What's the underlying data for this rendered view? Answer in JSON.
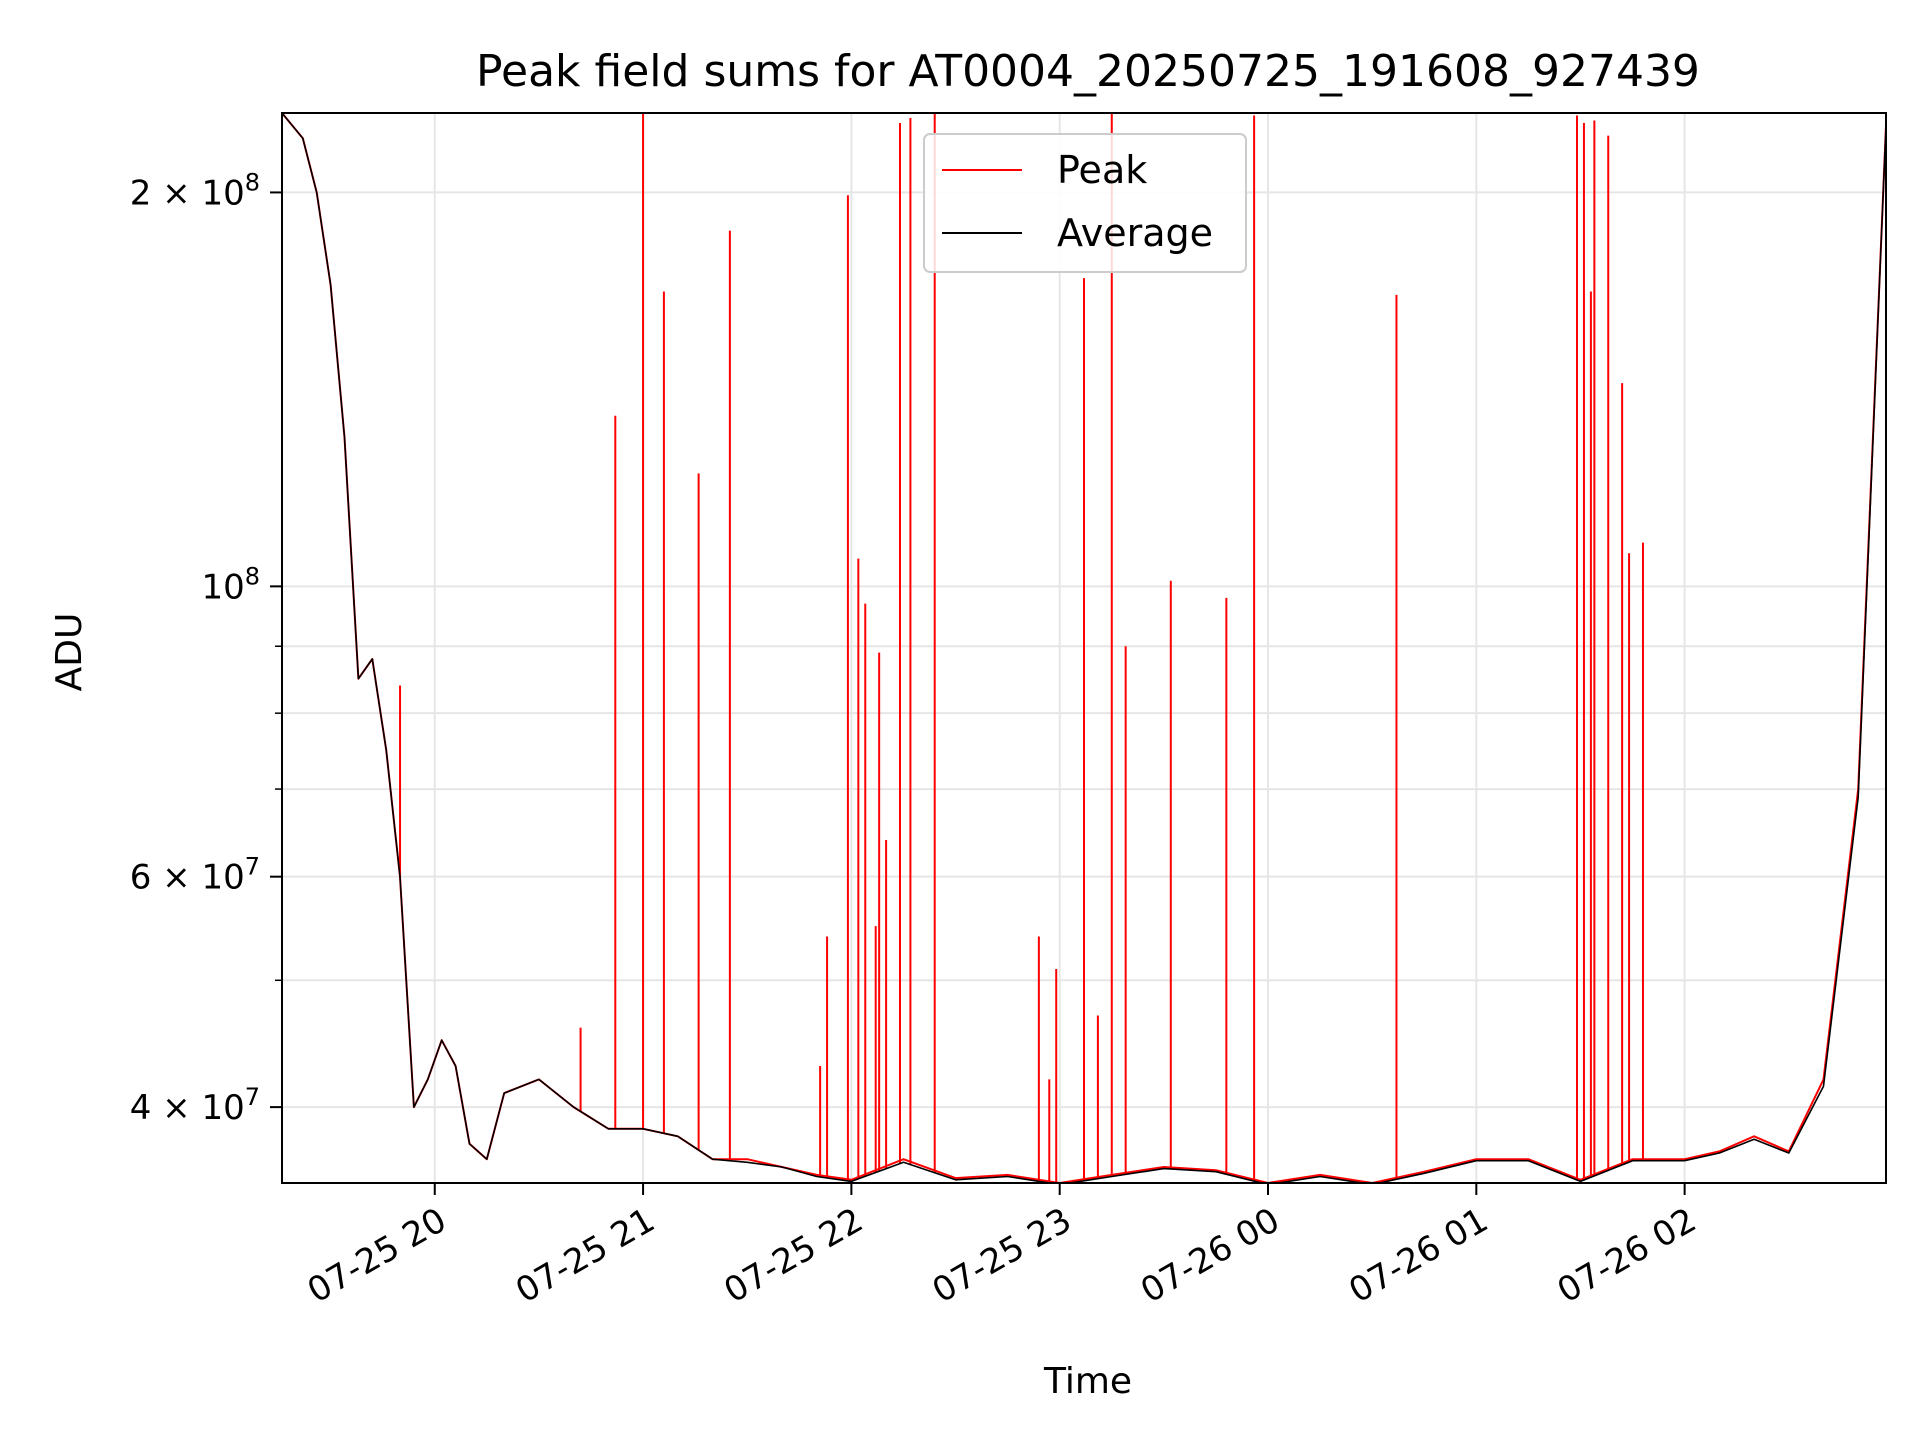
{
  "chart_data": {
    "type": "line",
    "title": "Peak field sums for AT0004_20250725_191608_927439",
    "xlabel": "Time",
    "ylabel": "ADU",
    "y_scale": "log",
    "xlim": [
      "2025-07-25 19:16",
      "2025-07-26 02:58"
    ],
    "ylim": [
      35000000,
      230000000
    ],
    "grid": true,
    "legend_position": "top-center",
    "x_ticks": [
      "07-25 20",
      "07-25 21",
      "07-25 22",
      "07-25 23",
      "07-26 00",
      "07-26 01",
      "07-26 02"
    ],
    "y_ticks": [
      {
        "value": 40000000,
        "mantissa": "4",
        "exponent": "7"
      },
      {
        "value": 60000000,
        "mantissa": "6",
        "exponent": "7"
      },
      {
        "value": 100000000,
        "mantissa": "",
        "exponent": "8"
      },
      {
        "value": 200000000,
        "mantissa": "2",
        "exponent": "8"
      }
    ],
    "colors": {
      "peak": "#ff0000",
      "average": "#000000",
      "grid": "#e6e6e6"
    },
    "series": [
      {
        "name": "Peak",
        "color": "#ff0000",
        "x": [
          "2025-07-25 19:16",
          "2025-07-25 19:22",
          "2025-07-25 19:26",
          "2025-07-25 19:30",
          "2025-07-25 19:34",
          "2025-07-25 19:38",
          "2025-07-25 19:42",
          "2025-07-25 19:46",
          "2025-07-25 19:50",
          "2025-07-25 19:54",
          "2025-07-25 19:58",
          "2025-07-25 20:02",
          "2025-07-25 20:06",
          "2025-07-25 20:10",
          "2025-07-25 20:15",
          "2025-07-25 20:20",
          "2025-07-25 20:30",
          "2025-07-25 20:40",
          "2025-07-25 20:50",
          "2025-07-25 21:00",
          "2025-07-25 21:10",
          "2025-07-25 21:20",
          "2025-07-25 21:30",
          "2025-07-25 21:40",
          "2025-07-25 21:50",
          "2025-07-25 22:00",
          "2025-07-25 22:15",
          "2025-07-25 22:30",
          "2025-07-25 22:45",
          "2025-07-25 23:00",
          "2025-07-25 23:15",
          "2025-07-25 23:30",
          "2025-07-25 23:45",
          "2025-07-26 00:00",
          "2025-07-26 00:15",
          "2025-07-26 00:30",
          "2025-07-26 00:45",
          "2025-07-26 01:00",
          "2025-07-26 01:15",
          "2025-07-26 01:30",
          "2025-07-26 01:45",
          "2025-07-26 02:00",
          "2025-07-26 02:10",
          "2025-07-26 02:20",
          "2025-07-26 02:30",
          "2025-07-26 02:40",
          "2025-07-26 02:50",
          "2025-07-26 02:58"
        ],
        "y": [
          230000000,
          220000000,
          200000000,
          170000000,
          130000000,
          85000000,
          88000000,
          75000000,
          60000000,
          40000000,
          42000000,
          45000000,
          43000000,
          37500000,
          36500000,
          41000000,
          42000000,
          40000000,
          38500000,
          38500000,
          38000000,
          36500000,
          36500000,
          36000000,
          35500000,
          35200000,
          36500000,
          35300000,
          35500000,
          35000000,
          35500000,
          36000000,
          35800000,
          35000000,
          35500000,
          35000000,
          35700000,
          36500000,
          36500000,
          35200000,
          36500000,
          36500000,
          37000000,
          38000000,
          37000000,
          42000000,
          70000000,
          225000000
        ],
        "spikes": [
          {
            "x": "2025-07-25 19:50",
            "y": 84000000
          },
          {
            "x": "2025-07-25 20:42",
            "y": 46000000
          },
          {
            "x": "2025-07-25 20:52",
            "y": 135000000
          },
          {
            "x": "2025-07-25 21:00",
            "y": 230000000
          },
          {
            "x": "2025-07-25 21:06",
            "y": 168000000
          },
          {
            "x": "2025-07-25 21:16",
            "y": 122000000
          },
          {
            "x": "2025-07-25 21:25",
            "y": 187000000
          },
          {
            "x": "2025-07-25 21:51",
            "y": 43000000
          },
          {
            "x": "2025-07-25 21:53",
            "y": 54000000
          },
          {
            "x": "2025-07-25 21:59",
            "y": 199000000
          },
          {
            "x": "2025-07-25 22:02",
            "y": 105000000
          },
          {
            "x": "2025-07-25 22:04",
            "y": 97000000
          },
          {
            "x": "2025-07-25 22:07",
            "y": 55000000
          },
          {
            "x": "2025-07-25 22:08",
            "y": 89000000
          },
          {
            "x": "2025-07-25 22:10",
            "y": 64000000
          },
          {
            "x": "2025-07-25 22:14",
            "y": 226000000
          },
          {
            "x": "2025-07-25 22:17",
            "y": 228000000
          },
          {
            "x": "2025-07-25 22:24",
            "y": 230000000
          },
          {
            "x": "2025-07-25 22:54",
            "y": 54000000
          },
          {
            "x": "2025-07-25 22:57",
            "y": 42000000
          },
          {
            "x": "2025-07-25 22:59",
            "y": 51000000
          },
          {
            "x": "2025-07-25 23:07",
            "y": 172000000
          },
          {
            "x": "2025-07-25 23:11",
            "y": 47000000
          },
          {
            "x": "2025-07-25 23:15",
            "y": 230000000
          },
          {
            "x": "2025-07-25 23:19",
            "y": 90000000
          },
          {
            "x": "2025-07-25 23:32",
            "y": 101000000
          },
          {
            "x": "2025-07-25 23:48",
            "y": 98000000
          },
          {
            "x": "2025-07-25 23:56",
            "y": 229000000
          },
          {
            "x": "2025-07-26 00:37",
            "y": 167000000
          },
          {
            "x": "2025-07-26 01:29",
            "y": 229000000
          },
          {
            "x": "2025-07-26 01:31",
            "y": 226000000
          },
          {
            "x": "2025-07-26 01:33",
            "y": 168000000
          },
          {
            "x": "2025-07-26 01:34",
            "y": 227000000
          },
          {
            "x": "2025-07-26 01:38",
            "y": 221000000
          },
          {
            "x": "2025-07-26 01:42",
            "y": 143000000
          },
          {
            "x": "2025-07-26 01:44",
            "y": 106000000
          },
          {
            "x": "2025-07-26 01:48",
            "y": 108000000
          }
        ]
      },
      {
        "name": "Average",
        "color": "#000000",
        "x": [
          "2025-07-25 19:16",
          "2025-07-25 19:22",
          "2025-07-25 19:26",
          "2025-07-25 19:30",
          "2025-07-25 19:34",
          "2025-07-25 19:38",
          "2025-07-25 19:42",
          "2025-07-25 19:46",
          "2025-07-25 19:50",
          "2025-07-25 19:54",
          "2025-07-25 19:58",
          "2025-07-25 20:02",
          "2025-07-25 20:06",
          "2025-07-25 20:10",
          "2025-07-25 20:15",
          "2025-07-25 20:20",
          "2025-07-25 20:30",
          "2025-07-25 20:40",
          "2025-07-25 20:50",
          "2025-07-25 21:00",
          "2025-07-25 21:10",
          "2025-07-25 21:20",
          "2025-07-25 21:30",
          "2025-07-25 21:40",
          "2025-07-25 21:50",
          "2025-07-25 22:00",
          "2025-07-25 22:15",
          "2025-07-25 22:30",
          "2025-07-25 22:45",
          "2025-07-25 23:00",
          "2025-07-25 23:15",
          "2025-07-25 23:30",
          "2025-07-25 23:45",
          "2025-07-26 00:00",
          "2025-07-26 00:15",
          "2025-07-26 00:30",
          "2025-07-26 00:45",
          "2025-07-26 01:00",
          "2025-07-26 01:15",
          "2025-07-26 01:30",
          "2025-07-26 01:45",
          "2025-07-26 02:00",
          "2025-07-26 02:10",
          "2025-07-26 02:20",
          "2025-07-26 02:30",
          "2025-07-26 02:40",
          "2025-07-26 02:50",
          "2025-07-26 02:58"
        ],
        "y": [
          230000000,
          220000000,
          200000000,
          170000000,
          130000000,
          85000000,
          88000000,
          75000000,
          60000000,
          40000000,
          42000000,
          45000000,
          43000000,
          37500000,
          36500000,
          41000000,
          42000000,
          40000000,
          38500000,
          38500000,
          38000000,
          36500000,
          36300000,
          36000000,
          35400000,
          35100000,
          36300000,
          35200000,
          35400000,
          34900000,
          35400000,
          35900000,
          35700000,
          34900000,
          35400000,
          34900000,
          35600000,
          36400000,
          36400000,
          35100000,
          36400000,
          36400000,
          36900000,
          37800000,
          36900000,
          41500000,
          69000000,
          225000000
        ]
      }
    ]
  }
}
